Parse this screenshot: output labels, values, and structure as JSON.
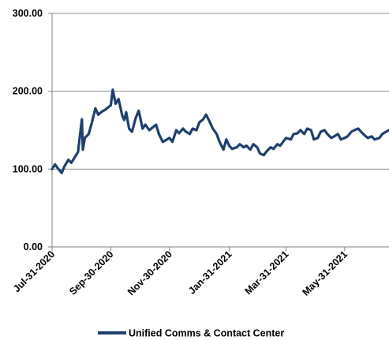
{
  "colors": {
    "series": "#1F3F6E",
    "axis": "#7f7f7f",
    "grid": "#8c8c8c"
  },
  "chart_data": {
    "type": "line",
    "title": "",
    "xlabel": "",
    "ylabel": "",
    "ylim": [
      0,
      300
    ],
    "yticks": [
      "0.00",
      "100.00",
      "200.00",
      "300.00"
    ],
    "xticks": [
      "Jul-31-2020",
      "Sep-30-2020",
      "Nov-30-2020",
      "Jan-31-2021",
      "Mar-31-2021",
      "May-31-2021"
    ],
    "grid": "horizontal",
    "legend": "bottom",
    "series": [
      {
        "name": "Unified Comms & Contact Center",
        "x": [
          "2020-07-31",
          "2020-08-03",
          "2020-08-06",
          "2020-08-10",
          "2020-08-13",
          "2020-08-17",
          "2020-08-20",
          "2020-08-24",
          "2020-08-27",
          "2020-08-31",
          "2020-09-01",
          "2020-09-03",
          "2020-09-07",
          "2020-09-10",
          "2020-09-14",
          "2020-09-17",
          "2020-09-21",
          "2020-09-24",
          "2020-09-28",
          "2020-09-30",
          "2020-10-02",
          "2020-10-05",
          "2020-10-08",
          "2020-10-12",
          "2020-10-14",
          "2020-10-16",
          "2020-10-19",
          "2020-10-22",
          "2020-10-26",
          "2020-10-29",
          "2020-11-02",
          "2020-11-05",
          "2020-11-09",
          "2020-11-12",
          "2020-11-16",
          "2020-11-19",
          "2020-11-23",
          "2020-11-26",
          "2020-11-30",
          "2020-12-03",
          "2020-12-07",
          "2020-12-10",
          "2020-12-14",
          "2020-12-17",
          "2020-12-21",
          "2020-12-24",
          "2020-12-28",
          "2020-12-31",
          "2021-01-04",
          "2021-01-07",
          "2021-01-11",
          "2021-01-14",
          "2021-01-18",
          "2021-01-21",
          "2021-01-25",
          "2021-01-28",
          "2021-01-31",
          "2021-02-03",
          "2021-02-08",
          "2021-02-11",
          "2021-02-15",
          "2021-02-18",
          "2021-02-22",
          "2021-02-25",
          "2021-03-01",
          "2021-03-04",
          "2021-03-08",
          "2021-03-11",
          "2021-03-15",
          "2021-03-18",
          "2021-03-22",
          "2021-03-25",
          "2021-03-31",
          "2021-04-05",
          "2021-04-08",
          "2021-04-12",
          "2021-04-15",
          "2021-04-19",
          "2021-04-22",
          "2021-04-26",
          "2021-04-29",
          "2021-05-03",
          "2021-05-06",
          "2021-05-10",
          "2021-05-13",
          "2021-05-17",
          "2021-05-20",
          "2021-05-24",
          "2021-05-27",
          "2021-05-31",
          "2021-06-03",
          "2021-06-07",
          "2021-06-10",
          "2021-06-14",
          "2021-06-17",
          "2021-06-21",
          "2021-06-24",
          "2021-06-28",
          "2021-07-01",
          "2021-07-06",
          "2021-07-09",
          "2021-07-13",
          "2021-07-16"
        ],
        "values": [
          100,
          106,
          101,
          95,
          104,
          112,
          108,
          116,
          122,
          164,
          125,
          140,
          145,
          158,
          178,
          170,
          174,
          176,
          180,
          182,
          202,
          184,
          190,
          168,
          163,
          173,
          152,
          148,
          166,
          175,
          152,
          157,
          150,
          153,
          157,
          145,
          135,
          137,
          140,
          135,
          150,
          146,
          152,
          148,
          145,
          152,
          150,
          160,
          164,
          170,
          160,
          152,
          145,
          135,
          125,
          138,
          130,
          126,
          128,
          132,
          128,
          130,
          125,
          132,
          128,
          120,
          118,
          123,
          128,
          126,
          132,
          130,
          140,
          138,
          145,
          146,
          150,
          145,
          152,
          150,
          138,
          140,
          148,
          150,
          145,
          140,
          142,
          145,
          138,
          140,
          142,
          148,
          150,
          152,
          148,
          143,
          140,
          142,
          138,
          140,
          145,
          148,
          150
        ]
      }
    ]
  }
}
